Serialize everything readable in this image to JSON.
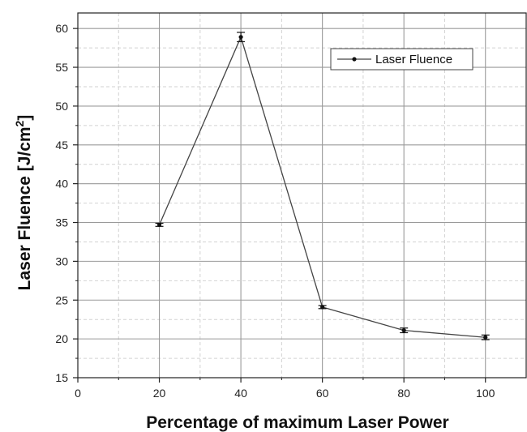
{
  "chart_data": {
    "type": "line",
    "xlabel": "Percentage of maximum Laser Power",
    "ylabel": "Laser Fluence [J/cm",
    "ylabel_sup": "2",
    "ylabel_end": "]",
    "xlim": [
      0,
      110
    ],
    "ylim": [
      15,
      62
    ],
    "x_ticks": [
      0,
      20,
      40,
      60,
      80,
      100
    ],
    "x_tick_labels": [
      "0",
      "20",
      "40",
      "60",
      "80",
      "100"
    ],
    "x_minor_ticks": [
      10,
      30,
      50,
      70,
      90
    ],
    "y_ticks": [
      15,
      20,
      25,
      30,
      35,
      40,
      45,
      50,
      55,
      60
    ],
    "y_tick_labels": [
      "15",
      "20",
      "25",
      "30",
      "35",
      "40",
      "45",
      "50",
      "55",
      "60"
    ],
    "y_minor_ticks": [
      17.5,
      22.5,
      27.5,
      32.5,
      37.5,
      42.5,
      47.5,
      52.5,
      57.5
    ],
    "grid": true,
    "legend_position": "top-right",
    "series": [
      {
        "name": "Laser Fluence",
        "color": "#444444",
        "x": [
          20,
          40,
          60,
          80,
          100
        ],
        "y": [
          34.7,
          58.9,
          24.1,
          21.1,
          20.2
        ],
        "error": [
          0.2,
          0.6,
          0.2,
          0.3,
          0.3
        ]
      }
    ]
  }
}
